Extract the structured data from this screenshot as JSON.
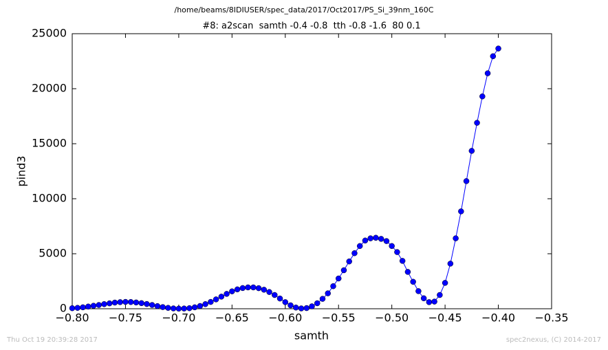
{
  "chart_data": {
    "type": "line",
    "suptitle": "/home/beams/8IDIUSER/spec_data/2017/Oct2017/PS_Si_39nm_160C",
    "title": "#8: a2scan  samth -0.4 -0.8  tth -0.8 -1.6  80 0.1",
    "x_label": "samth",
    "y_label": "pind3",
    "footer_left": "Thu Oct 19 20:39:28 2017",
    "footer_right": "spec2nexus, (C) 2014-2017",
    "x": [
      -0.8,
      -0.795,
      -0.79,
      -0.785,
      -0.78,
      -0.775,
      -0.77,
      -0.765,
      -0.76,
      -0.755,
      -0.75,
      -0.745,
      -0.74,
      -0.735,
      -0.73,
      -0.725,
      -0.72,
      -0.715,
      -0.71,
      -0.705,
      -0.7,
      -0.695,
      -0.69,
      -0.685,
      -0.68,
      -0.675,
      -0.67,
      -0.665,
      -0.66,
      -0.655,
      -0.65,
      -0.645,
      -0.64,
      -0.635,
      -0.63,
      -0.625,
      -0.62,
      -0.615,
      -0.61,
      -0.605,
      -0.6,
      -0.595,
      -0.59,
      -0.585,
      -0.58,
      -0.575,
      -0.57,
      -0.565,
      -0.56,
      -0.555,
      -0.55,
      -0.545,
      -0.54,
      -0.535,
      -0.53,
      -0.525,
      -0.52,
      -0.515,
      -0.51,
      -0.505,
      -0.5,
      -0.495,
      -0.49,
      -0.485,
      -0.48,
      -0.475,
      -0.47,
      -0.465,
      -0.46,
      -0.455,
      -0.45,
      -0.445,
      -0.44,
      -0.435,
      -0.43,
      -0.425,
      -0.42,
      -0.415,
      -0.41,
      -0.405,
      -0.4
    ],
    "series": [
      {
        "name": "pind3",
        "color": "#0000ff",
        "values": [
          50,
          80,
          130,
          200,
          270,
          340,
          420,
          490,
          560,
          600,
          620,
          610,
          570,
          510,
          430,
          340,
          240,
          150,
          80,
          30,
          10,
          20,
          50,
          130,
          250,
          420,
          620,
          850,
          1100,
          1350,
          1580,
          1760,
          1880,
          1940,
          1940,
          1870,
          1730,
          1520,
          1250,
          930,
          600,
          310,
          110,
          30,
          60,
          220,
          500,
          900,
          1400,
          2050,
          2750,
          3500,
          4300,
          5050,
          5700,
          6200,
          6400,
          6450,
          6350,
          6150,
          5700,
          5150,
          4350,
          3350,
          2450,
          1600,
          950,
          600,
          650,
          1250,
          2350,
          4100,
          6400,
          8850,
          11600,
          14350,
          16900,
          19300,
          21400,
          22950,
          23650
        ]
      }
    ],
    "xlim": [
      -0.8,
      -0.35
    ],
    "xticks": [
      {
        "value": -0.8,
        "label": "−0.80"
      },
      {
        "value": -0.75,
        "label": "−0.75"
      },
      {
        "value": -0.7,
        "label": "−0.70"
      },
      {
        "value": -0.65,
        "label": "−0.65"
      },
      {
        "value": -0.6,
        "label": "−0.60"
      },
      {
        "value": -0.55,
        "label": "−0.55"
      },
      {
        "value": -0.5,
        "label": "−0.50"
      },
      {
        "value": -0.45,
        "label": "−0.45"
      },
      {
        "value": -0.4,
        "label": "−0.40"
      },
      {
        "value": -0.35,
        "label": "−0.35"
      }
    ],
    "ylim": [
      0,
      25000
    ],
    "yticks": [
      0,
      5000,
      10000,
      15000,
      20000,
      25000
    ],
    "grid": false
  }
}
